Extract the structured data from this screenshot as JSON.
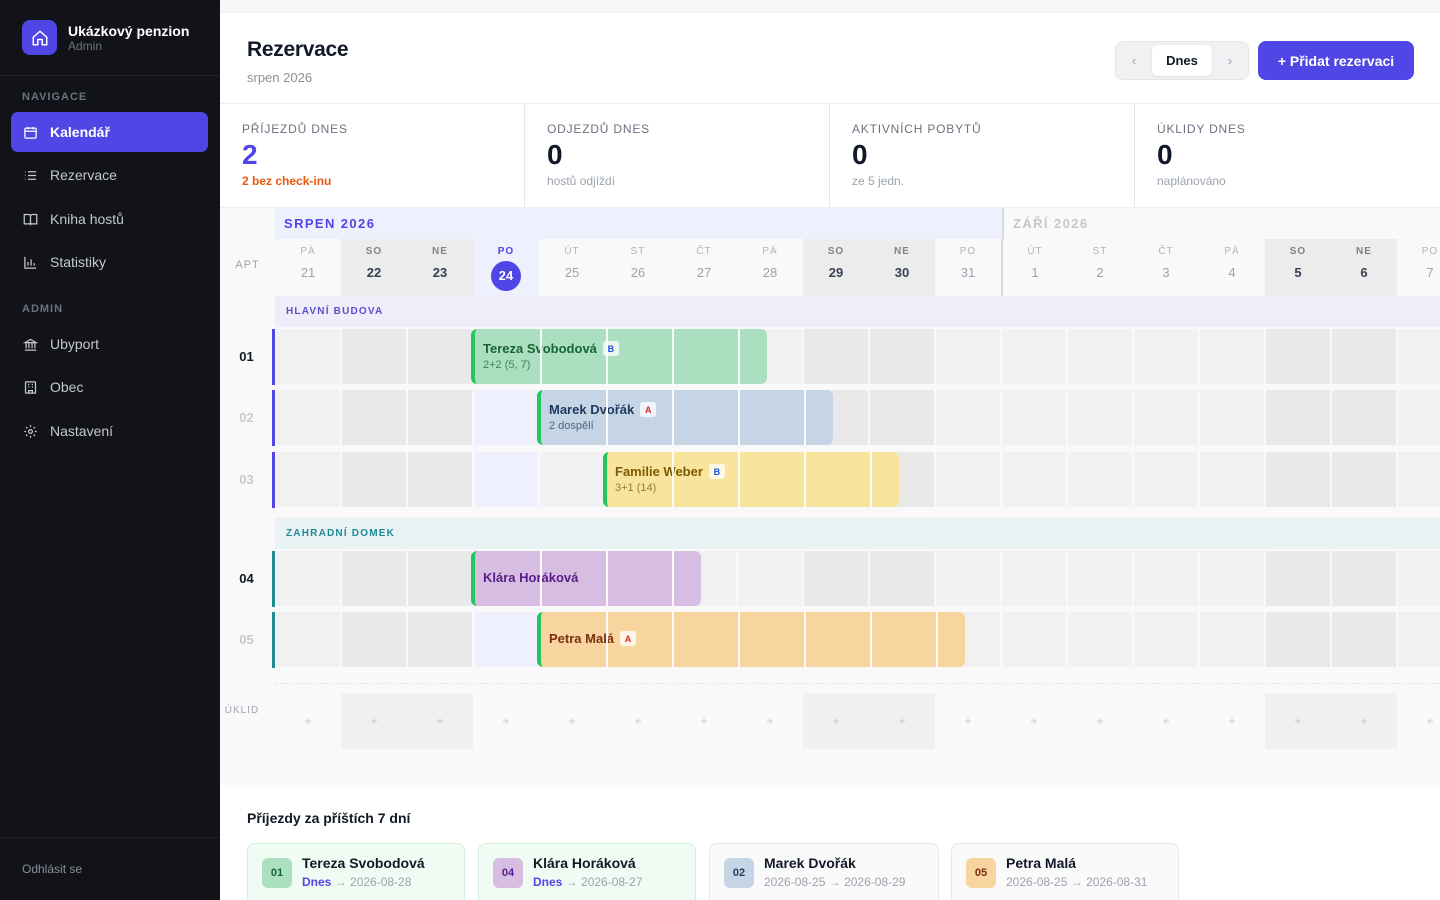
{
  "sidebar": {
    "brand_title": "Ukázkový penzion",
    "brand_sub": "Admin",
    "nav_heading": "NAVIGACE",
    "nav_items": [
      {
        "label": "Kalendář",
        "icon": "calendar-icon",
        "active": true
      },
      {
        "label": "Rezervace",
        "icon": "list-icon"
      },
      {
        "label": "Kniha hostů",
        "icon": "book-icon"
      },
      {
        "label": "Statistiky",
        "icon": "bar-chart-icon"
      }
    ],
    "admin_heading": "ADMIN",
    "admin_items": [
      {
        "label": "Ubyport",
        "icon": "bank-icon"
      },
      {
        "label": "Obec",
        "icon": "building-icon"
      },
      {
        "label": "Nastavení",
        "icon": "gear-icon"
      }
    ],
    "logout": "Odhlásit se"
  },
  "header": {
    "title": "Rezervace",
    "subtitle": "srpen 2026",
    "prev": "‹",
    "today": "Dnes",
    "next": "›",
    "add_button": "+ Přidat rezervaci"
  },
  "stats": [
    {
      "label": "PŘÍJEZDŮ DNES",
      "value": "2",
      "note": "2 bez check-inu"
    },
    {
      "label": "ODJEZDŮ DNES",
      "value": "0",
      "note": "hostů odjíždí"
    },
    {
      "label": "AKTIVNÍCH POBYTŮ",
      "value": "0",
      "note": "ze 5 jedn."
    },
    {
      "label": "ÚKLIDY DNES",
      "value": "0",
      "note": "naplánováno"
    }
  ],
  "calendar": {
    "apt_label": "APT",
    "months": [
      "SRPEN 2026",
      "ZÁŘÍ 2026"
    ],
    "days": [
      {
        "dw": "PÁ",
        "dn": "21"
      },
      {
        "dw": "SO",
        "dn": "22",
        "we": true
      },
      {
        "dw": "NE",
        "dn": "23",
        "we": true
      },
      {
        "dw": "PO",
        "dn": "24",
        "today": true
      },
      {
        "dw": "ÚT",
        "dn": "25"
      },
      {
        "dw": "ST",
        "dn": "26"
      },
      {
        "dw": "ČT",
        "dn": "27"
      },
      {
        "dw": "PÁ",
        "dn": "28"
      },
      {
        "dw": "SO",
        "dn": "29",
        "we": true
      },
      {
        "dw": "NE",
        "dn": "30",
        "we": true
      },
      {
        "dw": "PO",
        "dn": "31"
      },
      {
        "dw": "ÚT",
        "dn": "1",
        "sep": true
      },
      {
        "dw": "ST",
        "dn": "2"
      },
      {
        "dw": "ČT",
        "dn": "3"
      },
      {
        "dw": "PÁ",
        "dn": "4"
      },
      {
        "dw": "SO",
        "dn": "5",
        "we": true
      },
      {
        "dw": "NE",
        "dn": "6",
        "we": true
      },
      {
        "dw": "PO",
        "dn": "7"
      }
    ],
    "groups": [
      {
        "name": "HLAVNÍ BUDOVA",
        "color": "#4f46e5"
      },
      {
        "name": "ZAHRADNÍ DOMEK",
        "color": "#1f8a93"
      }
    ],
    "rows": [
      {
        "apt": "01",
        "group": 0,
        "dim": false
      },
      {
        "apt": "02",
        "group": 0,
        "dim": true
      },
      {
        "apt": "03",
        "group": 0,
        "dim": true
      },
      {
        "apt": "04",
        "group": 1,
        "dim": false
      },
      {
        "apt": "05",
        "group": 1,
        "dim": true
      }
    ],
    "bookings": [
      {
        "row": 0,
        "start_day": 3,
        "nights": 4,
        "name": "Tereza Svobodová",
        "badge": "B",
        "sub": "2+2 (5, 7)",
        "color": "#acdfc0",
        "text": "#166534",
        "badge_color": "#1d4ed8"
      },
      {
        "row": 1,
        "start_day": 4,
        "nights": 4,
        "name": "Marek Dvořák",
        "badge": "A",
        "sub": "2 dospělí",
        "color": "#c6d5e6",
        "text": "#1e3a5f",
        "badge_color": "#dc2626"
      },
      {
        "row": 2,
        "start_day": 5,
        "nights": 4,
        "name": "Familie Weber",
        "badge": "B",
        "sub": "3+1 (14)",
        "color": "#f8e49c",
        "text": "#7a5a05",
        "badge_color": "#1d4ed8"
      },
      {
        "row": 3,
        "start_day": 3,
        "nights": 3,
        "name": "Klára Horáková",
        "badge": "",
        "sub": "",
        "color": "#d8bde2",
        "text": "#581c87",
        "badge_color": "#000000"
      },
      {
        "row": 4,
        "start_day": 4,
        "nights": 6,
        "name": "Petra Malá",
        "badge": "A",
        "sub": "",
        "color": "#f8d59f",
        "text": "#7c2d12",
        "badge_color": "#dc2626"
      }
    ],
    "cleaning_label": "ÚKLID",
    "cleaning_plus": "+"
  },
  "arrivals": {
    "title": "Příjezdy za příštích 7 dní",
    "items": [
      {
        "apt": "01",
        "name": "Tereza Svobodová",
        "from": "Dnes",
        "arrow": "→",
        "to": "2026-08-28",
        "today": true,
        "color": "#acdfc0",
        "text": "#166534"
      },
      {
        "apt": "04",
        "name": "Klára Horáková",
        "from": "Dnes",
        "arrow": "→",
        "to": "2026-08-27",
        "today": true,
        "color": "#d8bde2",
        "text": "#581c87"
      },
      {
        "apt": "02",
        "name": "Marek Dvořák",
        "from": "2026-08-25",
        "arrow": "→",
        "to": "2026-08-29",
        "today": false,
        "color": "#c6d5e6",
        "text": "#1e3a5f"
      },
      {
        "apt": "05",
        "name": "Petra Malá",
        "from": "2026-08-25",
        "arrow": "→",
        "to": "2026-08-31",
        "today": false,
        "color": "#f8d59f",
        "text": "#7c2d12"
      }
    ]
  }
}
